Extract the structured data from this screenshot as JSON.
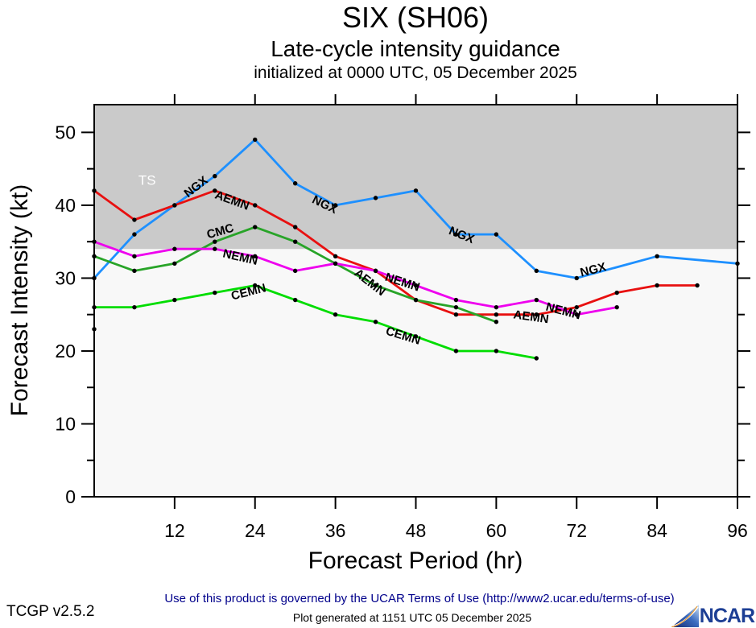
{
  "header": {
    "title": "SIX (SH06)",
    "subtitle": "Late-cycle intensity guidance",
    "init_line": "initialized at 0000 UTC, 05 December 2025"
  },
  "footer": {
    "terms": "Use of this product is governed by the UCAR Terms of Use (http://www2.ucar.edu/terms-of-use)",
    "generated": "Plot generated at 1151 UTC   05 December 2025",
    "version": "TCGP v2.5.2",
    "logo_text": "NCAR"
  },
  "chart_data": {
    "type": "line",
    "xlabel": "Forecast Period (hr)",
    "ylabel": "Forecast Intensity (kt)",
    "xlim": [
      0,
      96
    ],
    "ylim": [
      0,
      53.8
    ],
    "xticks": [
      12,
      24,
      36,
      48,
      60,
      72,
      84,
      96
    ],
    "yticks_major": [
      0,
      10,
      20,
      30,
      40,
      50
    ],
    "yticks_minor": [
      5,
      15,
      25,
      35,
      45
    ],
    "grid": false,
    "plot_bg": "#f8f8f8",
    "ts_zone": {
      "label": "TS",
      "threshold_kt": 34,
      "color": "#cacaca",
      "label_color": "#ffffff",
      "label_pos": {
        "hr": 6.6,
        "kt": 42.8
      }
    },
    "marker_color": "#000000",
    "series": [
      {
        "name": "NGX",
        "color": "#1e90ff",
        "x": [
          0,
          6,
          12,
          18,
          24,
          30,
          36,
          42,
          48,
          54,
          60,
          66,
          72,
          84,
          96
        ],
        "y": [
          30,
          36,
          40,
          44,
          49,
          43,
          40,
          41,
          42,
          36,
          36,
          31,
          30,
          33,
          32
        ]
      },
      {
        "name": "AEMN",
        "color": "#e81010",
        "x": [
          0,
          6,
          12,
          18,
          24,
          30,
          36,
          42,
          48,
          54,
          60,
          66,
          72,
          78,
          84,
          90
        ],
        "y": [
          42,
          38,
          40,
          42,
          40,
          37,
          33,
          31,
          27,
          25,
          25,
          25,
          26,
          28,
          29,
          29
        ]
      },
      {
        "name": "CMC",
        "color": "#28a428",
        "x": [
          0,
          6,
          12,
          18,
          24,
          30,
          36,
          42,
          48,
          54,
          60
        ],
        "y": [
          33,
          31,
          32,
          35,
          37,
          35,
          32,
          29,
          27,
          26,
          24
        ]
      },
      {
        "name": "NEMN",
        "color": "#ee00ee",
        "x": [
          0,
          6,
          12,
          18,
          24,
          30,
          36,
          42,
          48,
          54,
          60,
          66,
          72,
          78
        ],
        "y": [
          35,
          33,
          34,
          34,
          33,
          31,
          32,
          31,
          29,
          27,
          26,
          27,
          25,
          26
        ]
      },
      {
        "name": "CEMN",
        "color": "#00dd00",
        "x": [
          0,
          6,
          12,
          18,
          24,
          30,
          36,
          42,
          48,
          54,
          60,
          66
        ],
        "y": [
          26,
          26,
          27,
          28,
          29,
          27,
          25,
          24,
          22,
          20,
          20,
          19
        ]
      }
    ],
    "isolated_point": {
      "hr": 0,
      "kt": 23
    },
    "series_labels": [
      {
        "text": "NGX",
        "hr": 14.0,
        "kt": 41.0,
        "angle": -38
      },
      {
        "text": "AEMN",
        "hr": 17.9,
        "kt": 41.0,
        "angle": 20
      },
      {
        "text": "CMC",
        "hr": 17.0,
        "kt": 35.4,
        "angle": -16
      },
      {
        "text": "NEMN",
        "hr": 19.1,
        "kt": 32.9,
        "angle": 13
      },
      {
        "text": "CEMN",
        "hr": 20.6,
        "kt": 27.0,
        "angle": -14
      },
      {
        "text": "NGX",
        "hr": 32.4,
        "kt": 40.4,
        "angle": 26
      },
      {
        "text": "AEMN",
        "hr": 38.7,
        "kt": 30.5,
        "angle": 38
      },
      {
        "text": "NEMN",
        "hr": 43.3,
        "kt": 29.7,
        "angle": 18
      },
      {
        "text": "CEMN",
        "hr": 43.4,
        "kt": 22.3,
        "angle": 17
      },
      {
        "text": "NGX",
        "hr": 52.8,
        "kt": 36.1,
        "angle": 22
      },
      {
        "text": "AEMN",
        "hr": 62.5,
        "kt": 24.5,
        "angle": 8
      },
      {
        "text": "NEMN",
        "hr": 67.3,
        "kt": 25.6,
        "angle": 15
      },
      {
        "text": "NGX",
        "hr": 72.7,
        "kt": 30.2,
        "angle": -14
      }
    ]
  }
}
